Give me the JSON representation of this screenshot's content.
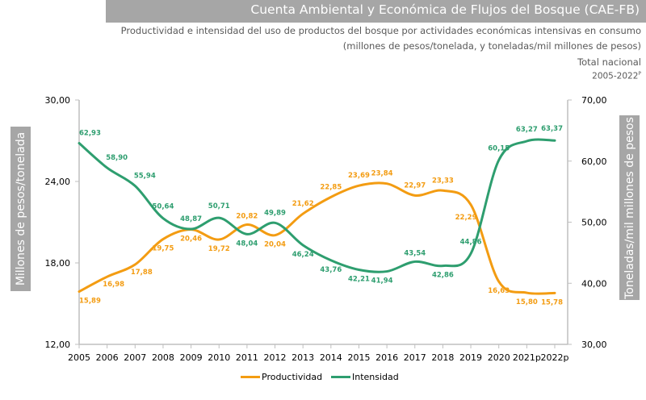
{
  "header": {
    "title": "Cuenta Ambiental y Económica de Flujos del Bosque (CAE-FB)",
    "subtitle_line1": "Productividad e intensidad del uso de productos del bosque por actividades económicas intensivas en consumo",
    "subtitle_line2": "(millones de pesos/tonelada, y toneladas/mil millones de pesos)",
    "subtitle_line3": "Total nacional",
    "period": "2005-2022",
    "period_superscript": "P"
  },
  "colors": {
    "productividad": "#f39c12",
    "intensidad": "#2e9e6f",
    "axis": "#bfbfbf",
    "label_box": "#a6a6a6"
  },
  "chart_data": {
    "type": "line",
    "title": "Cuenta Ambiental y Económica de Flujos del Bosque (CAE-FB)",
    "x": [
      "2005",
      "2006",
      "2007",
      "2008",
      "2009",
      "2010",
      "2011",
      "2012",
      "2013",
      "2014",
      "2015",
      "2016",
      "2017",
      "2018",
      "2019",
      "2020",
      "2021p",
      "2022p"
    ],
    "xlabel": "",
    "ylabel_left": "Millones de pesos/tonelada",
    "ylabel_right": "Toneladas/mil millones de pesos",
    "ylim_left": [
      12,
      30
    ],
    "ylim_right": [
      30,
      70
    ],
    "yticks_left": [
      "12,00",
      "18,00",
      "24,00",
      "30,00"
    ],
    "yticks_left_values": [
      12,
      18,
      24,
      30
    ],
    "yticks_right": [
      "30,00",
      "40,00",
      "50,00",
      "60,00",
      "70,00"
    ],
    "yticks_right_values": [
      30,
      40,
      50,
      60,
      70
    ],
    "grid": false,
    "legend_position": "bottom",
    "series": [
      {
        "name": "Productividad",
        "axis": "left",
        "values": [
          15.89,
          16.98,
          17.88,
          19.75,
          20.46,
          19.72,
          20.82,
          20.04,
          21.62,
          22.85,
          23.69,
          23.84,
          22.97,
          23.33,
          22.29,
          16.63,
          15.8,
          15.78
        ],
        "labels": [
          "15,89",
          "16,98",
          "17,88",
          "19,75",
          "20,46",
          "19,72",
          "20,82",
          "20,04",
          "21,62",
          "22,85",
          "23,69",
          "23,84",
          "22,97",
          "23,33",
          "22,29",
          "16,63",
          "15,80",
          "15,78"
        ]
      },
      {
        "name": "Intensidad",
        "axis": "right",
        "values": [
          62.93,
          58.9,
          55.94,
          50.64,
          48.87,
          50.71,
          48.04,
          49.89,
          46.24,
          43.76,
          42.21,
          41.94,
          43.54,
          42.86,
          44.86,
          60.15,
          63.27,
          63.37
        ],
        "labels": [
          "62,93",
          "58,90",
          "55,94",
          "50,64",
          "48,87",
          "50,71",
          "48,04",
          "49,89",
          "46,24",
          "43,76",
          "42,21",
          "41,94",
          "43,54",
          "42,86",
          "44,86",
          "60,15",
          "63,27",
          "63,37"
        ]
      }
    ]
  }
}
